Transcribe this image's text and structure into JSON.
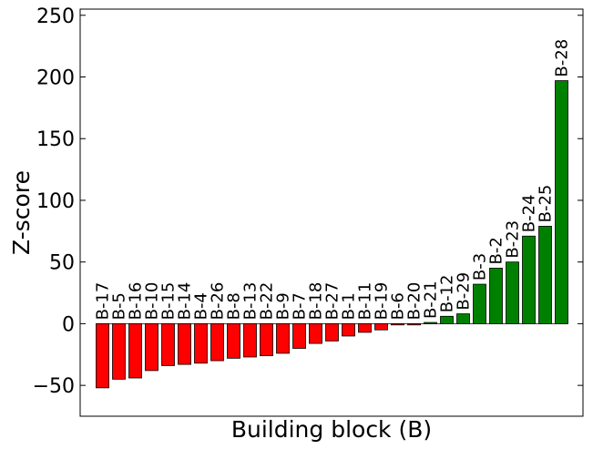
{
  "chart_data": {
    "type": "bar",
    "xlabel": "Building block (B)",
    "ylabel": "Z-score",
    "ylim": [
      -75,
      255
    ],
    "yticks": [
      -50,
      0,
      50,
      100,
      150,
      200,
      250
    ],
    "ytick_labels": [
      "−50",
      "0",
      "50",
      "100",
      "150",
      "200",
      "250"
    ],
    "grid": false,
    "colors": {
      "negative": "#ff0000",
      "positive": "#008000"
    },
    "categories": [
      "B-17",
      "B-5",
      "B-16",
      "B-10",
      "B-15",
      "B-14",
      "B-4",
      "B-26",
      "B-8",
      "B-13",
      "B-22",
      "B-9",
      "B-7",
      "B-18",
      "B-27",
      "B-1",
      "B-11",
      "B-19",
      "B-6",
      "B-20",
      "B-21",
      "B-12",
      "B-29",
      "B-3",
      "B-2",
      "B-23",
      "B-24",
      "B-25",
      "B-28"
    ],
    "values": [
      -52,
      -45,
      -44,
      -38,
      -34,
      -33,
      -32,
      -30,
      -28,
      -27,
      -26,
      -24,
      -20,
      -16,
      -14,
      -10,
      -7,
      -5,
      -1,
      -1,
      1,
      6,
      8,
      32,
      45,
      50,
      71,
      79,
      197
    ]
  }
}
